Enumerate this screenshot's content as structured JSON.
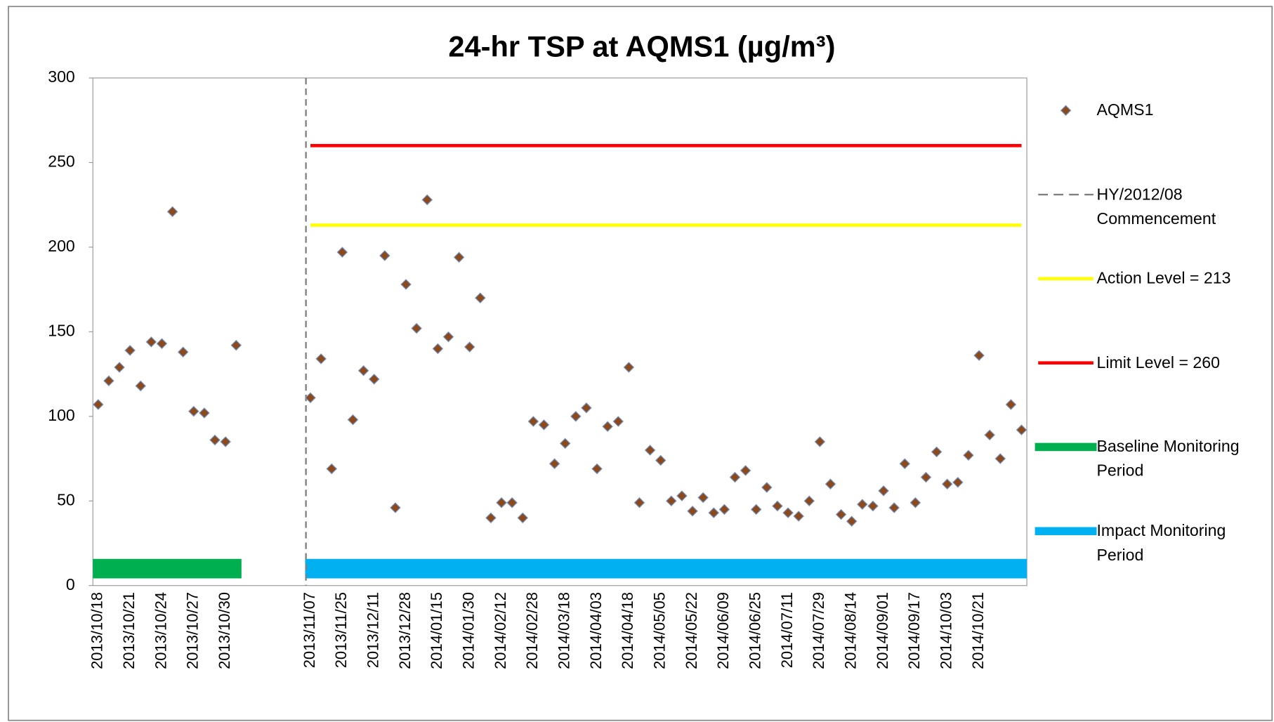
{
  "chart_data": {
    "type": "scatter",
    "title": "24-hr TSP at AQMS1 (µg/m³)",
    "categories": [
      "2013/10/18",
      null,
      null,
      "2013/10/21",
      null,
      null,
      "2013/10/24",
      null,
      null,
      "2013/10/27",
      null,
      null,
      "2013/10/30",
      null,
      null,
      null,
      null,
      null,
      null,
      null,
      "2013/11/07",
      null,
      null,
      "2013/11/25",
      null,
      null,
      "2013/12/11",
      null,
      null,
      "2013/12/28",
      null,
      null,
      "2014/01/15",
      null,
      null,
      "2014/01/30",
      null,
      null,
      "2014/02/12",
      null,
      null,
      "2014/02/28",
      null,
      null,
      "2014/03/18",
      null,
      null,
      "2014/04/03",
      null,
      null,
      "2014/04/18",
      null,
      null,
      "2014/05/05",
      null,
      null,
      "2014/05/22",
      null,
      null,
      "2014/06/09",
      null,
      null,
      "2014/06/25",
      null,
      null,
      "2014/07/11",
      null,
      null,
      "2014/07/29",
      null,
      null,
      "2014/08/14",
      null,
      null,
      "2014/09/01",
      null,
      null,
      "2014/09/17",
      null,
      null,
      "2014/10/03",
      null,
      null,
      "2014/10/21",
      null,
      null,
      null,
      null
    ],
    "ylim": [
      0,
      300
    ],
    "yticks": [
      0,
      50,
      100,
      150,
      200,
      250,
      300
    ],
    "grid": false,
    "legend": "right",
    "series": [
      {
        "name": "AQMS1",
        "style": "marker",
        "color": "#8c4a1c",
        "edge_color": "#7094c8",
        "values": [
          107,
          121,
          129,
          139,
          118,
          144,
          143,
          221,
          138,
          103,
          102,
          86,
          85,
          142,
          null,
          null,
          null,
          null,
          null,
          null,
          111,
          134,
          69,
          197,
          98,
          127,
          122,
          195,
          46,
          178,
          152,
          228,
          140,
          147,
          194,
          141,
          170,
          40,
          49,
          49,
          40,
          97,
          95,
          72,
          84,
          100,
          105,
          69,
          94,
          97,
          129,
          49,
          80,
          74,
          50,
          53,
          44,
          52,
          43,
          45,
          64,
          68,
          45,
          58,
          47,
          43,
          41,
          50,
          85,
          60,
          42,
          38,
          48,
          47,
          56,
          46,
          72,
          49,
          64,
          79,
          60,
          61,
          77,
          136,
          89,
          75,
          107,
          92
        ]
      },
      {
        "name": "HY/2012/08 Commencement",
        "style": "vline",
        "color": "#7f7f7f",
        "x": "2013/11/07"
      },
      {
        "name": "Action Level = 213",
        "style": "line",
        "color": "#ffff00",
        "values": [
          null,
          null,
          null,
          null,
          null,
          null,
          null,
          null,
          null,
          null,
          null,
          null,
          null,
          null,
          null,
          null,
          null,
          null,
          null,
          null,
          213,
          213,
          213,
          213,
          213,
          213,
          213,
          213,
          213,
          213,
          213,
          213,
          213,
          213,
          213,
          213,
          213,
          213,
          213,
          213,
          213,
          213,
          213,
          213,
          213,
          213,
          213,
          213,
          213,
          213,
          213,
          213,
          213,
          213,
          213,
          213,
          213,
          213,
          213,
          213,
          213,
          213,
          213,
          213,
          213,
          213,
          213,
          213,
          213,
          213,
          213,
          213,
          213,
          213,
          213,
          213,
          213,
          213,
          213,
          213,
          213,
          213,
          213,
          213,
          213,
          213,
          213,
          213
        ]
      },
      {
        "name": "Limit Level = 260",
        "style": "line",
        "color": "#ff0000",
        "values": [
          null,
          null,
          null,
          null,
          null,
          null,
          null,
          null,
          null,
          null,
          null,
          null,
          null,
          null,
          null,
          null,
          null,
          null,
          null,
          null,
          260,
          260,
          260,
          260,
          260,
          260,
          260,
          260,
          260,
          260,
          260,
          260,
          260,
          260,
          260,
          260,
          260,
          260,
          260,
          260,
          260,
          260,
          260,
          260,
          260,
          260,
          260,
          260,
          260,
          260,
          260,
          260,
          260,
          260,
          260,
          260,
          260,
          260,
          260,
          260,
          260,
          260,
          260,
          260,
          260,
          260,
          260,
          260,
          260,
          260,
          260,
          260,
          260,
          260,
          260,
          260,
          260,
          260,
          260,
          260,
          260,
          260,
          260,
          260,
          260,
          260,
          260,
          260
        ]
      },
      {
        "name": "Baseline Monitoring Period",
        "style": "band",
        "color": "#00b050",
        "values": [
          10,
          10,
          10,
          10,
          10,
          10,
          10,
          10,
          10,
          10,
          10,
          10,
          10,
          10,
          null,
          null,
          null,
          null,
          null,
          null,
          null,
          null,
          null,
          null,
          null,
          null,
          null,
          null,
          null,
          null,
          null,
          null,
          null,
          null,
          null,
          null,
          null,
          null,
          null,
          null,
          null,
          null,
          null,
          null,
          null,
          null,
          null,
          null,
          null,
          null,
          null,
          null,
          null,
          null,
          null,
          null,
          null,
          null,
          null,
          null,
          null,
          null,
          null,
          null,
          null,
          null,
          null,
          null,
          null,
          null,
          null,
          null,
          null,
          null,
          null,
          null,
          null,
          null,
          null,
          null,
          null,
          null,
          null,
          null,
          null,
          null,
          null,
          null
        ]
      },
      {
        "name": "Impact Monitoring Period",
        "style": "band",
        "color": "#00b0f0",
        "values": [
          null,
          null,
          null,
          null,
          null,
          null,
          null,
          null,
          null,
          null,
          null,
          null,
          null,
          null,
          null,
          null,
          null,
          null,
          null,
          null,
          10,
          10,
          10,
          10,
          10,
          10,
          10,
          10,
          10,
          10,
          10,
          10,
          10,
          10,
          10,
          10,
          10,
          10,
          10,
          10,
          10,
          10,
          10,
          10,
          10,
          10,
          10,
          10,
          10,
          10,
          10,
          10,
          10,
          10,
          10,
          10,
          10,
          10,
          10,
          10,
          10,
          10,
          10,
          10,
          10,
          10,
          10,
          10,
          10,
          10,
          10,
          10,
          10,
          10,
          10,
          10,
          10,
          10,
          10,
          10,
          10,
          10,
          10,
          10,
          10,
          10,
          10,
          10
        ]
      }
    ]
  }
}
